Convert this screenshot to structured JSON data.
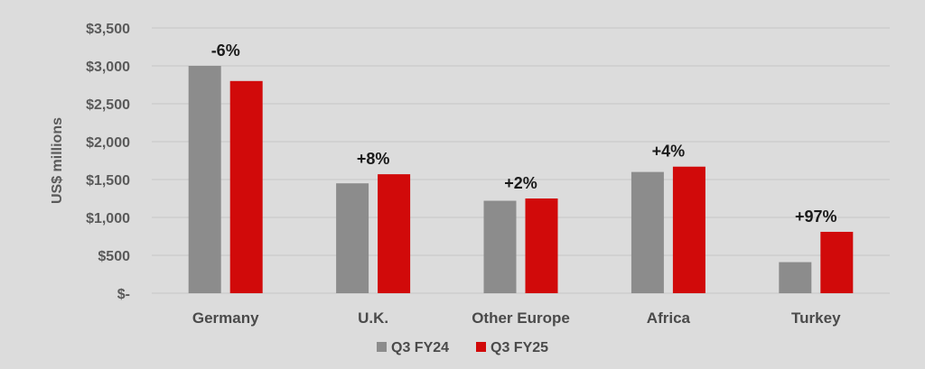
{
  "chart_data": {
    "type": "bar",
    "categories": [
      "Germany",
      "U.K.",
      "Other Europe",
      "Africa",
      "Turkey"
    ],
    "series": [
      {
        "name": "Q3 FY24",
        "values": [
          3000,
          1450,
          1220,
          1600,
          410
        ],
        "color": "#8c8c8c"
      },
      {
        "name": "Q3 FY25",
        "values": [
          2800,
          1570,
          1250,
          1670,
          810
        ],
        "color": "#d10a0a"
      }
    ],
    "annotations": [
      "-6%",
      "+8%",
      "+2%",
      "+4%",
      "+97%"
    ],
    "ylabel": "US$ millions",
    "ylim": [
      0,
      3500
    ],
    "yticks": [
      0,
      500,
      1000,
      1500,
      2000,
      2500,
      3000,
      3500
    ],
    "ytick_labels": [
      "$-",
      "$500",
      "$1,000",
      "$1,500",
      "$2,000",
      "$2,500",
      "$3,000",
      "$3,500"
    ],
    "grid": true,
    "legend_position": "bottom"
  }
}
